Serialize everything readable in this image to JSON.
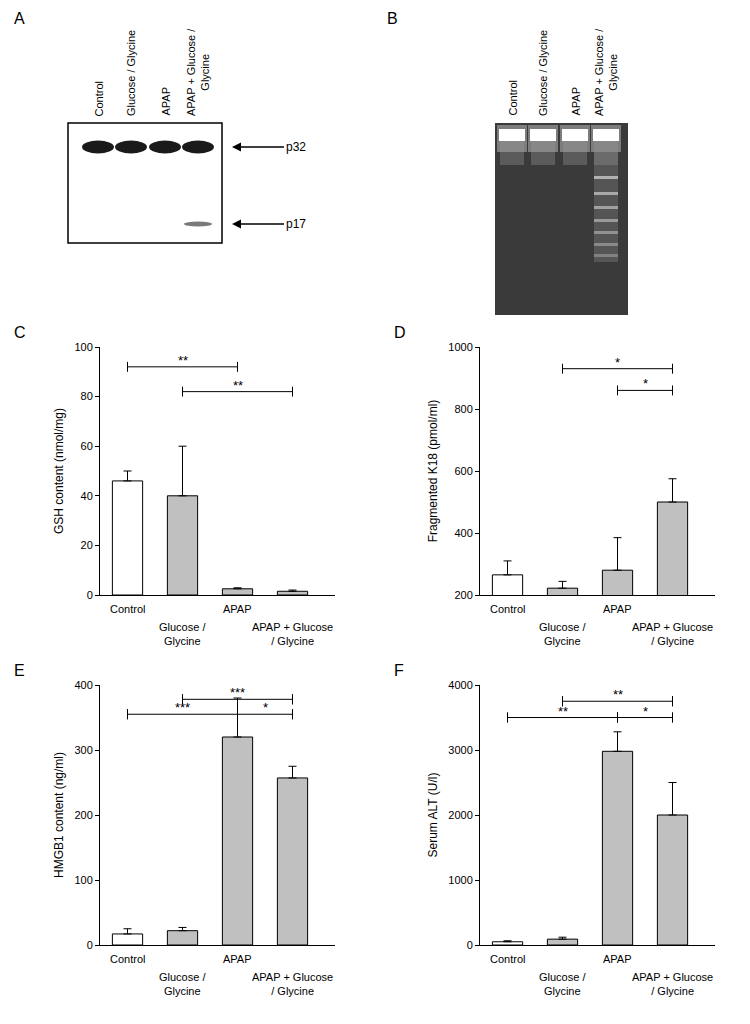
{
  "blots": [
    {
      "label": "A",
      "lanes": [
        "Control",
        "Glucose / Glycine",
        "APAP",
        "APAP + Glucose /\nGlycine"
      ],
      "bands": [
        {
          "label": "p32",
          "lanes": [
            true,
            true,
            true,
            true
          ]
        },
        {
          "label": "p17",
          "lanes": [
            false,
            false,
            false,
            true
          ]
        }
      ]
    },
    {
      "label": "B",
      "lanes": [
        "Control",
        "Glucose / Glycine",
        "APAP",
        "APAP + Glucose /\nGlycine"
      ],
      "ladder_lanes": [
        false,
        false,
        false,
        true
      ]
    }
  ],
  "chart_data": [
    {
      "type": "bar",
      "title": "C",
      "y_label": "GSH content (nmol/mg)",
      "categories": [
        "Control",
        "Glucose /\nGlycine",
        "APAP",
        "APAP + Glucose\n/ Glycine"
      ],
      "values": [
        46,
        40,
        2.5,
        1.5
      ],
      "errors": [
        4,
        20,
        0.4,
        0.5
      ],
      "colors": [
        "#ffffff",
        "#c0c0c0",
        "#c0c0c0",
        "#c0c0c0"
      ],
      "ylim": [
        0,
        100
      ],
      "yticks": [
        0,
        20,
        40,
        60,
        80,
        100
      ],
      "grid": false,
      "significance": [
        {
          "from": 0,
          "to": 2,
          "y": 92,
          "label": "**"
        },
        {
          "from": 1,
          "to": 3,
          "y": 82,
          "label": "**"
        }
      ]
    },
    {
      "type": "bar",
      "title": "D",
      "y_label": "Fragmented K18 (pmol/ml)",
      "categories": [
        "Control",
        "Glucose /\nGlycine",
        "APAP",
        "APAP + Glucose\n/ Glycine"
      ],
      "values": [
        265,
        222,
        280,
        500
      ],
      "errors": [
        45,
        22,
        105,
        75
      ],
      "colors": [
        "#ffffff",
        "#c0c0c0",
        "#c0c0c0",
        "#c0c0c0"
      ],
      "ylim": [
        200,
        1000
      ],
      "yticks": [
        200,
        400,
        600,
        800,
        1000
      ],
      "grid": false,
      "significance": [
        {
          "from": 1,
          "to": 3,
          "y": 930,
          "label": "*"
        },
        {
          "from": 2,
          "to": 3,
          "y": 860,
          "label": "*"
        }
      ]
    },
    {
      "type": "bar",
      "title": "E",
      "y_label": "HMGB1 content (ng/ml)",
      "categories": [
        "Control",
        "Glucose /\nGlycine",
        "APAP",
        "APAP + Glucose\n/ Glycine"
      ],
      "values": [
        17,
        22,
        320,
        257
      ],
      "errors": [
        8,
        5,
        60,
        18
      ],
      "colors": [
        "#ffffff",
        "#c0c0c0",
        "#c0c0c0",
        "#c0c0c0"
      ],
      "ylim": [
        0,
        400
      ],
      "yticks": [
        0,
        100,
        200,
        300,
        400
      ],
      "grid": false,
      "significance": [
        {
          "from": 1,
          "to": 3,
          "y": 378,
          "label": "***"
        },
        {
          "from": 0,
          "to": 2,
          "y": 355,
          "label": "***"
        },
        {
          "from": 2,
          "to": 3,
          "y": 355,
          "label": "*"
        }
      ]
    },
    {
      "type": "bar",
      "title": "F",
      "y_label": "Serum ALT (U/l)",
      "categories": [
        "Control",
        "Glucose /\nGlycine",
        "APAP",
        "APAP + Glucose\n/ Glycine"
      ],
      "values": [
        50,
        90,
        2980,
        2000
      ],
      "errors": [
        15,
        30,
        300,
        500
      ],
      "colors": [
        "#ffffff",
        "#c0c0c0",
        "#c0c0c0",
        "#c0c0c0"
      ],
      "ylim": [
        0,
        4000
      ],
      "yticks": [
        0,
        1000,
        2000,
        3000,
        4000
      ],
      "grid": false,
      "significance": [
        {
          "from": 1,
          "to": 3,
          "y": 3750,
          "label": "**"
        },
        {
          "from": 0,
          "to": 2,
          "y": 3500,
          "label": "**"
        },
        {
          "from": 2,
          "to": 3,
          "y": 3500,
          "label": "*"
        }
      ]
    }
  ]
}
